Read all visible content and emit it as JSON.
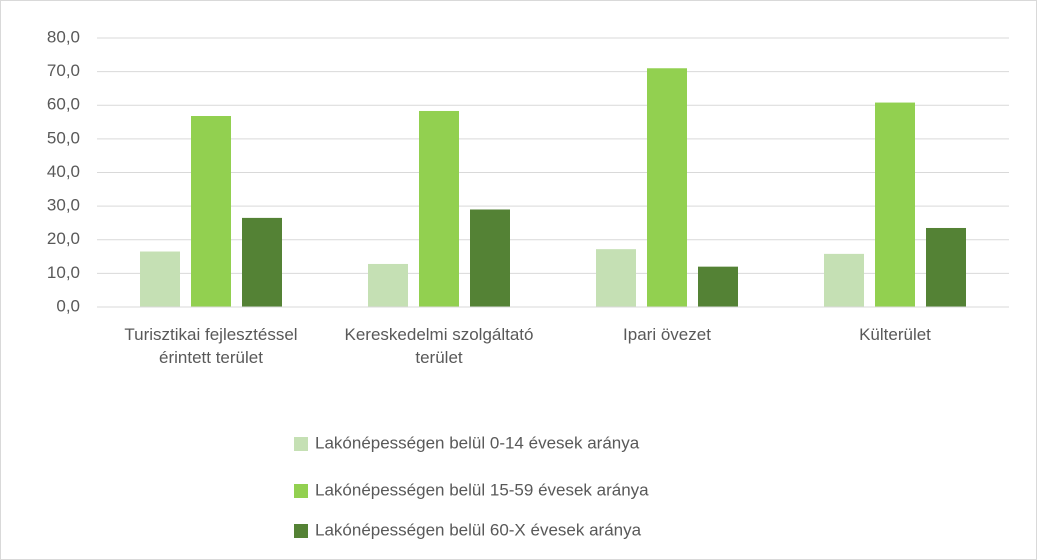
{
  "chart_data": {
    "type": "bar",
    "categories": [
      "Turisztikai fejlesztéssel érintett terület",
      "Kereskedelmi szolgáltató terület",
      "Ipari övezet",
      "Külterület"
    ],
    "series": [
      {
        "name": "Lakónépességen belül 0-14 évesek aránya",
        "color": "#c5e0b4",
        "values": [
          16.5,
          12.8,
          17.2,
          15.8
        ]
      },
      {
        "name": "Lakónépességen belül 15-59 évesek aránya",
        "color": "#92d050",
        "values": [
          56.8,
          58.3,
          71.0,
          60.8
        ]
      },
      {
        "name": "Lakónépességen belül 60-X évesek aránya",
        "color": "#548235",
        "values": [
          26.5,
          29.0,
          12.0,
          23.5
        ]
      }
    ],
    "ylim": [
      0,
      80
    ],
    "yticks": [
      {
        "value": 0,
        "label": "0,0"
      },
      {
        "value": 10,
        "label": "10,0"
      },
      {
        "value": 20,
        "label": "20,0"
      },
      {
        "value": 30,
        "label": "30,0"
      },
      {
        "value": 40,
        "label": "40,0"
      },
      {
        "value": 50,
        "label": "50,0"
      },
      {
        "value": 60,
        "label": "60,0"
      },
      {
        "value": 70,
        "label": "70,0"
      },
      {
        "value": 80,
        "label": "80,0"
      }
    ],
    "grid": true,
    "legend": "bottom"
  }
}
